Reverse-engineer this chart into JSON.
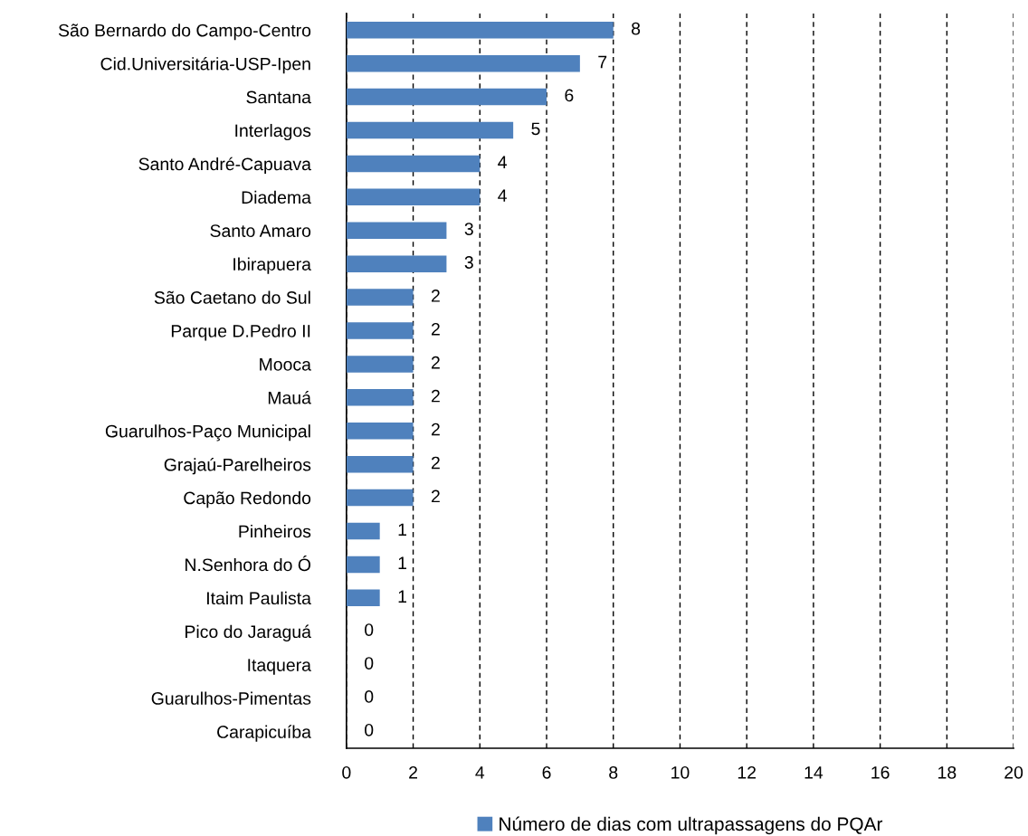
{
  "chart_data": {
    "type": "bar",
    "orientation": "horizontal",
    "categories": [
      "São Bernardo do Campo-Centro",
      "Cid.Universitária-USP-Ipen",
      "Santana",
      "Interlagos",
      "Santo André-Capuava",
      "Diadema",
      "Santo Amaro",
      "Ibirapuera",
      "São Caetano do Sul",
      "Parque D.Pedro II",
      "Mooca",
      "Mauá",
      "Guarulhos-Paço Municipal",
      "Grajaú-Parelheiros",
      "Capão Redondo",
      "Pinheiros",
      "N.Senhora do Ó",
      "Itaim Paulista",
      "Pico do Jaraguá",
      "Itaquera",
      "Guarulhos-Pimentas",
      "Carapicuíba"
    ],
    "series": [
      {
        "name": "Número de dias com ultrapassagens do PQAr",
        "color": "#4f81bd",
        "values": [
          8,
          7,
          6,
          5,
          4,
          4,
          3,
          3,
          2,
          2,
          2,
          2,
          2,
          2,
          2,
          1,
          1,
          1,
          0,
          0,
          0,
          0
        ]
      }
    ],
    "xlim": [
      0,
      20
    ],
    "xticks": [
      0,
      2,
      4,
      6,
      8,
      10,
      12,
      14,
      16,
      18,
      20
    ],
    "grid": "x",
    "legend": "bottom",
    "data_labels": true
  }
}
